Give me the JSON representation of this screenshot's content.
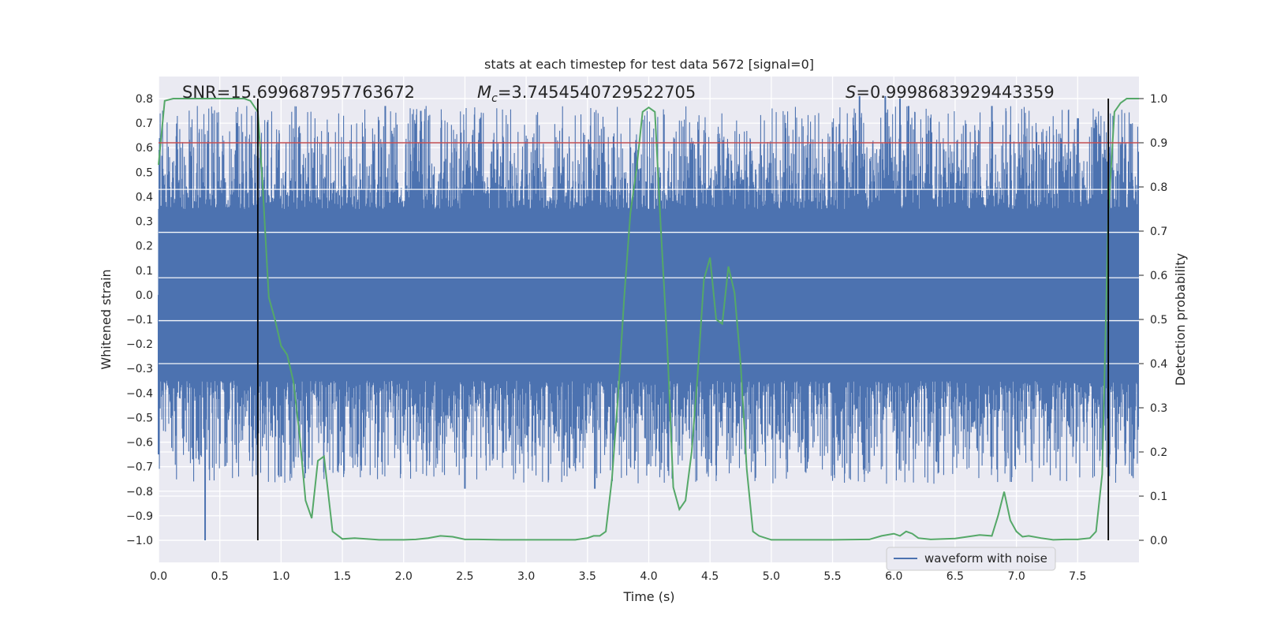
{
  "chart_data": {
    "type": "line",
    "title": "stats at each timestep for test data 5672 [signal=0]",
    "xlabel": "Time (s)",
    "ylabel_left": "Whitened strain",
    "ylabel_right": "Detection probability",
    "xlim": [
      0.0,
      8.0
    ],
    "ylim_left": [
      -1.09,
      0.89
    ],
    "ylim_right": [
      -0.05,
      1.05
    ],
    "x_ticks": [
      "0.0",
      "0.5",
      "1.0",
      "1.5",
      "2.0",
      "2.5",
      "3.0",
      "3.5",
      "4.0",
      "4.5",
      "5.0",
      "5.5",
      "6.0",
      "6.5",
      "7.0",
      "7.5"
    ],
    "y_ticks_left": [
      "0.8",
      "0.7",
      "0.6",
      "0.5",
      "0.4",
      "0.3",
      "0.2",
      "0.1",
      "0.0",
      "−0.1",
      "−0.2",
      "−0.3",
      "−0.4",
      "−0.5",
      "−0.6",
      "−0.7",
      "−0.8",
      "−0.9",
      "−1.0"
    ],
    "y_ticks_right": [
      "1.0",
      "0.9",
      "0.8",
      "0.7",
      "0.6",
      "0.5",
      "0.4",
      "0.3",
      "0.2",
      "0.1",
      "0.0"
    ],
    "annotations": {
      "snr": "SNR=15.699687957763672",
      "mc_symbol": "M",
      "mc_sub": "c",
      "mc_value": "=3.7454540729522705",
      "s_symbol": "S",
      "s_value": "=0.9998683929443359"
    },
    "legend": {
      "label": "waveform with noise",
      "position": "lower-right"
    },
    "threshold": {
      "value": 0.9,
      "axis": "right",
      "color": "#c44e52"
    },
    "vlines": [
      0.81,
      7.75
    ],
    "series": [
      {
        "name": "waveform with noise",
        "axis": "left",
        "color": "#4c72b0",
        "envelope_core": 0.3,
        "peaks": [
          {
            "x": 0.38,
            "y": -1.0
          },
          {
            "x": 0.0,
            "y": -0.65
          },
          {
            "x": 0.28,
            "y": -0.67
          },
          {
            "x": 1.0,
            "y": -0.74
          },
          {
            "x": 1.85,
            "y": 0.77
          },
          {
            "x": 2.14,
            "y": 0.75
          },
          {
            "x": 2.5,
            "y": -0.79
          },
          {
            "x": 3.56,
            "y": -0.79
          },
          {
            "x": 4.0,
            "y": -0.69
          },
          {
            "x": 5.72,
            "y": 0.81
          },
          {
            "x": 5.93,
            "y": 0.81
          },
          {
            "x": 6.05,
            "y": 0.8
          },
          {
            "x": 6.12,
            "y": 0.77
          },
          {
            "x": 6.8,
            "y": 0.77
          },
          {
            "x": 7.5,
            "y": 0.72
          }
        ]
      },
      {
        "name": "detection probability",
        "axis": "right",
        "color": "#55a868",
        "x": [
          0.0,
          0.05,
          0.12,
          0.2,
          0.3,
          0.4,
          0.5,
          0.6,
          0.7,
          0.75,
          0.81,
          0.85,
          0.9,
          0.95,
          1.0,
          1.05,
          1.1,
          1.15,
          1.2,
          1.25,
          1.3,
          1.35,
          1.42,
          1.5,
          1.6,
          1.8,
          2.0,
          2.1,
          2.2,
          2.3,
          2.4,
          2.5,
          2.6,
          2.8,
          3.0,
          3.2,
          3.4,
          3.5,
          3.55,
          3.6,
          3.65,
          3.7,
          3.75,
          3.8,
          3.85,
          3.9,
          3.95,
          4.0,
          4.05,
          4.1,
          4.15,
          4.2,
          4.25,
          4.3,
          4.35,
          4.4,
          4.45,
          4.5,
          4.55,
          4.6,
          4.65,
          4.7,
          4.75,
          4.8,
          4.85,
          4.9,
          5.0,
          5.2,
          5.5,
          5.8,
          5.9,
          6.0,
          6.05,
          6.1,
          6.15,
          6.2,
          6.3,
          6.5,
          6.7,
          6.8,
          6.85,
          6.9,
          6.95,
          7.0,
          7.05,
          7.1,
          7.2,
          7.3,
          7.4,
          7.5,
          7.6,
          7.65,
          7.7,
          7.75,
          7.8,
          7.85,
          7.9,
          7.95,
          8.0
        ],
        "y": [
          0.85,
          0.995,
          1.0,
          1.0,
          1.0,
          1.0,
          1.0,
          1.0,
          1.0,
          0.995,
          0.97,
          0.8,
          0.55,
          0.5,
          0.44,
          0.42,
          0.36,
          0.24,
          0.09,
          0.05,
          0.18,
          0.19,
          0.02,
          0.003,
          0.005,
          0.001,
          0.001,
          0.002,
          0.005,
          0.01,
          0.008,
          0.002,
          0.002,
          0.001,
          0.001,
          0.001,
          0.001,
          0.005,
          0.01,
          0.01,
          0.02,
          0.14,
          0.33,
          0.55,
          0.74,
          0.84,
          0.97,
          0.98,
          0.97,
          0.7,
          0.45,
          0.12,
          0.07,
          0.09,
          0.2,
          0.38,
          0.59,
          0.64,
          0.5,
          0.49,
          0.62,
          0.56,
          0.4,
          0.16,
          0.02,
          0.01,
          0.001,
          0.001,
          0.001,
          0.002,
          0.01,
          0.015,
          0.01,
          0.02,
          0.015,
          0.005,
          0.002,
          0.004,
          0.012,
          0.01,
          0.055,
          0.11,
          0.045,
          0.02,
          0.008,
          0.01,
          0.005,
          0.001,
          0.002,
          0.002,
          0.005,
          0.02,
          0.15,
          0.74,
          0.97,
          0.99,
          1.0,
          1.0,
          1.0
        ]
      }
    ]
  }
}
